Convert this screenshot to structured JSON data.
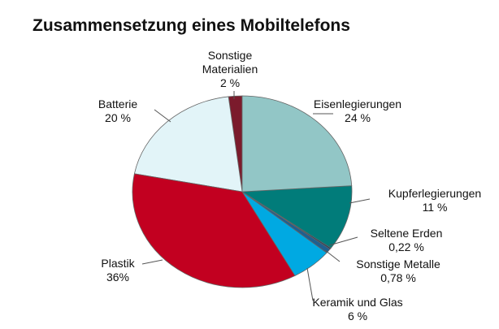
{
  "chart_data": {
    "type": "pie",
    "title": "Zusammensetzung eines Mobiltelefons",
    "categories": [
      "Eisenlegierungen",
      "Kupferlegierungen",
      "Seltene Erden",
      "Sonstige Metalle",
      "Keramik und Glas",
      "Plastik",
      "Batterie",
      "Sonstige Materialien"
    ],
    "values": [
      24,
      11,
      0.22,
      0.78,
      6,
      36,
      20,
      2
    ],
    "value_labels": [
      "24 %",
      "11 %",
      "0,22 %",
      "0,78 %",
      "6 %",
      "36%",
      "20 %",
      "2 %"
    ],
    "colors": [
      "#92c6c6",
      "#017c7a",
      "#1b3558",
      "#1f5f8f",
      "#00a9e2",
      "#c20020",
      "#e2f4f8",
      "#7b1b2c"
    ]
  }
}
